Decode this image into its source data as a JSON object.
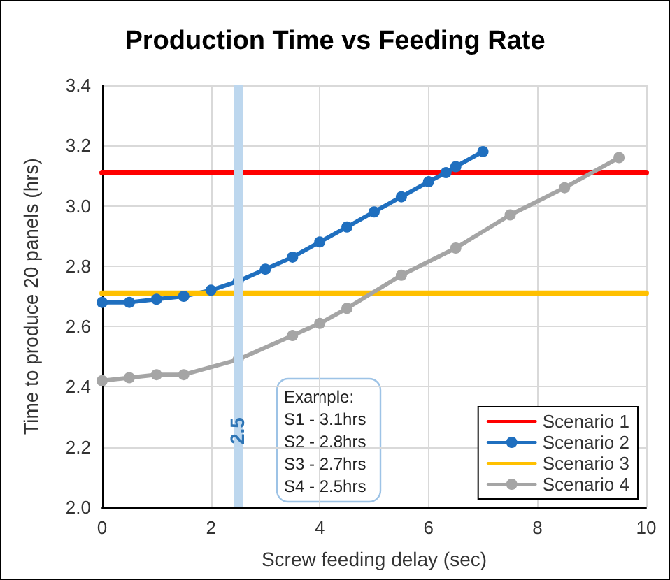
{
  "chart_data": {
    "type": "line",
    "title": "Production Time vs Feeding Rate",
    "xlabel": "Screw feeding delay (sec)",
    "ylabel": "Time to produce 20 panels (hrs)",
    "xlim": [
      0,
      10
    ],
    "xticks": [
      0,
      2,
      4,
      6,
      8,
      10
    ],
    "ylim": [
      2.0,
      3.4
    ],
    "yticks": [
      {
        "value": 2.0,
        "label": "2.0"
      },
      {
        "value": 2.2,
        "label": "2.2"
      },
      {
        "value": 2.4,
        "label": "2.4"
      },
      {
        "value": 2.6,
        "label": "2.6"
      },
      {
        "value": 2.8,
        "label": "2.8"
      },
      {
        "value": 3.0,
        "label": "3.0"
      },
      {
        "value": 3.2,
        "label": "3.2"
      },
      {
        "value": 3.4,
        "label": "3.4"
      }
    ],
    "grid": true,
    "legend": "bottom right",
    "series": [
      {
        "name": "Scenario 1",
        "color": "#ff0000",
        "marker": "none",
        "x": [
          0,
          10
        ],
        "values": [
          3.11,
          3.11
        ]
      },
      {
        "name": "Scenario 2",
        "color": "#1f6fbf",
        "marker": "circle",
        "x": [
          0,
          0.5,
          1,
          1.5,
          2,
          2.5,
          3,
          3.5,
          4,
          4.5,
          5,
          5.5,
          6,
          6.32,
          6.5,
          7
        ],
        "values": [
          2.68,
          2.68,
          2.69,
          2.7,
          2.72,
          2.75,
          2.79,
          2.83,
          2.88,
          2.93,
          2.98,
          3.03,
          3.08,
          3.11,
          3.13,
          3.18
        ]
      },
      {
        "name": "Scenario 3",
        "color": "#ffc000",
        "marker": "none",
        "x": [
          0,
          10
        ],
        "values": [
          2.71,
          2.71
        ]
      },
      {
        "name": "Scenario 4",
        "color": "#a5a5a5",
        "marker": "circle",
        "x": [
          0,
          0.5,
          1,
          1.5,
          2.5,
          3.5,
          4,
          4.5,
          5.5,
          6.5,
          7.5,
          8.5,
          9.5
        ],
        "values": [
          2.42,
          2.43,
          2.44,
          2.44,
          2.49,
          2.57,
          2.61,
          2.66,
          2.77,
          2.86,
          2.97,
          3.06,
          3.16
        ]
      }
    ],
    "ref_lines": [
      {
        "axis": "x",
        "value": 2.5,
        "label": "2.5",
        "color": "#bdd7ee"
      }
    ],
    "annotations": [
      "Example:",
      "S1 - 3.1hrs",
      "S2 - 2.8hrs",
      "S3 - 2.7hrs",
      "S4 - 2.5hrs"
    ]
  }
}
